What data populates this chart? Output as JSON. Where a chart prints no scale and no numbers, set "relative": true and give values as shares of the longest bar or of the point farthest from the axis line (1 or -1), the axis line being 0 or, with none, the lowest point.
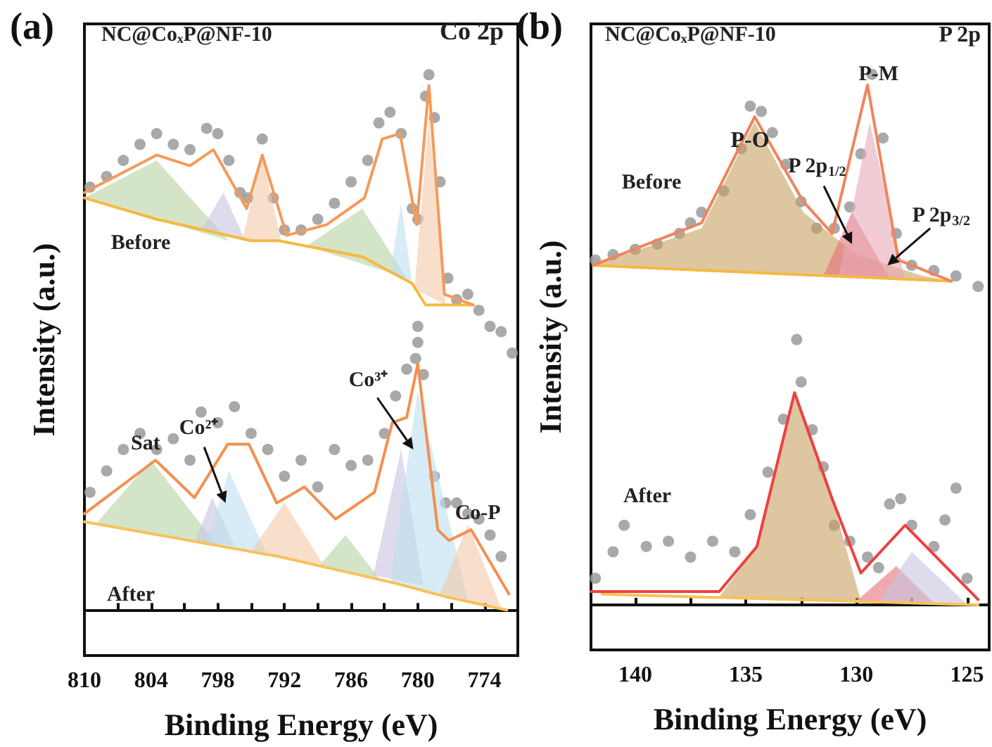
{
  "chart_data": [
    {
      "type": "line",
      "title": "(a)",
      "xlabel": "Binding Energy (eV)",
      "ylabel": "Intensity (a.u.)",
      "relative": true,
      "xlim": [
        810,
        771
      ],
      "xticks": [
        810,
        {
          "value": 807,
          "label": null
        },
        804,
        {
          "value": 801,
          "label": null
        },
        798,
        {
          "value": 795,
          "label": null
        },
        792,
        {
          "value": 789,
          "label": null
        },
        786,
        {
          "value": 783,
          "label": null
        },
        780,
        {
          "value": 777,
          "label": null
        },
        774
      ],
      "series": [
        {
          "type": "scatter",
          "marker": "circle",
          "color": "#9a9a9a",
          "x": [
            809.5,
            808,
            806.5,
            805,
            803.5,
            802,
            800.5,
            799,
            798,
            797,
            796,
            795.3,
            794,
            793,
            792,
            790.5,
            789,
            787.5,
            786,
            784.5,
            783.5,
            782.5,
            781.5,
            780.5,
            780,
            779.3,
            779,
            778.5,
            778,
            777.3,
            776.5,
            775.5,
            774.5,
            773.5,
            772.5,
            771.5
          ],
          "values": [
            0.79,
            0.81,
            0.84,
            0.87,
            0.89,
            0.87,
            0.86,
            0.9,
            0.89,
            0.84,
            0.78,
            0.77,
            0.88,
            0.77,
            0.71,
            0.71,
            0.73,
            0.76,
            0.8,
            0.84,
            0.91,
            0.93,
            0.89,
            0.75,
            0.73,
            0.96,
            1.0,
            0.92,
            0.8,
            0.62,
            0.58,
            0.59,
            0.56,
            0.53,
            0.52,
            0.48
          ]
        },
        {
          "type": "scatter",
          "marker": "circle",
          "color": "#9a9a9a",
          "x": [
            809.5,
            808,
            806.5,
            805,
            803.5,
            802,
            800.5,
            799.5,
            798,
            796.5,
            795,
            793.5,
            792,
            790.5,
            789,
            787.5,
            786,
            784.5,
            783,
            782,
            781,
            780.2,
            780,
            780,
            779.5,
            778.5,
            777.5,
            776.5,
            775.5,
            774.5,
            773.5,
            772.5
          ],
          "values": [
            0.22,
            0.26,
            0.3,
            0.33,
            0.3,
            0.32,
            0.28,
            0.37,
            0.35,
            0.38,
            0.33,
            0.3,
            0.25,
            0.28,
            0.23,
            0.3,
            0.27,
            0.28,
            0.33,
            0.4,
            0.45,
            0.47,
            0.5,
            0.53,
            0.44,
            0.25,
            0.2,
            0.2,
            0.18,
            0.17,
            0.14,
            0.1
          ]
        },
        {
          "type": "area",
          "color": "#b5d3a0",
          "x": [
            810,
            803.5,
            797
          ],
          "values": [
            0.77,
            0.84,
            0.69
          ]
        },
        {
          "type": "area",
          "color": "#c8c4e0",
          "x": [
            799.5,
            797.5,
            795.5
          ],
          "values": [
            0.71,
            0.78,
            0.69
          ]
        },
        {
          "type": "area",
          "color": "#f3c9a8",
          "x": [
            795.8,
            794,
            792.3
          ],
          "values": [
            0.69,
            0.85,
            0.69
          ]
        },
        {
          "type": "area",
          "color": "#b5d3a0",
          "x": [
            790,
            785,
            781
          ],
          "values": [
            0.68,
            0.75,
            0.62
          ]
        },
        {
          "type": "area",
          "color": "#bde0f0",
          "x": [
            782.5,
            781.5,
            780.5
          ],
          "values": [
            0.63,
            0.76,
            0.61
          ]
        },
        {
          "type": "area",
          "color": "#f3c9a8",
          "x": [
            780.3,
            779,
            777.5
          ],
          "values": [
            0.6,
            0.92,
            0.57
          ]
        },
        {
          "type": "area",
          "color": "#b5d3a0",
          "x": [
            809,
            804,
            798
          ],
          "values": [
            0.16,
            0.28,
            0.12
          ]
        },
        {
          "type": "area",
          "color": "#c8c4e0",
          "x": [
            800,
            798.5,
            796.5
          ],
          "values": [
            0.13,
            0.21,
            0.12
          ]
        },
        {
          "type": "area",
          "color": "#bde0f0",
          "x": [
            799,
            797,
            793.5
          ],
          "values": [
            0.125,
            0.26,
            0.1
          ]
        },
        {
          "type": "area",
          "color": "#f3c9a8",
          "x": [
            795,
            792,
            788.5
          ],
          "values": [
            0.11,
            0.2,
            0.085
          ]
        },
        {
          "type": "area",
          "color": "#b5d3a0",
          "x": [
            789,
            786.5,
            783.5
          ],
          "values": [
            0.08,
            0.14,
            0.06
          ]
        },
        {
          "type": "area",
          "color": "#c8c4e0",
          "x": [
            784,
            781.5,
            779.5
          ],
          "values": [
            0.065,
            0.3,
            0.045
          ]
        },
        {
          "type": "area",
          "color": "#bde0f0",
          "x": [
            782.5,
            780,
            775.5
          ],
          "values": [
            0.05,
            0.41,
            0.02
          ]
        },
        {
          "type": "area",
          "color": "#f3c9a8",
          "x": [
            778,
            775.5,
            772.5
          ],
          "values": [
            0.03,
            0.16,
            0.004
          ]
        },
        {
          "color": "#f5b942",
          "x": [
            810,
            803.5,
            795,
            792.5,
            785,
            780.5,
            779.3,
            775
          ],
          "values": [
            0.77,
            0.73,
            0.69,
            0.69,
            0.66,
            0.61,
            0.57,
            0.57
          ]
        },
        {
          "color": "#f7c25a",
          "x": [
            810,
            792.5,
            782,
            777.5,
            772
          ],
          "values": [
            0.165,
            0.1,
            0.05,
            0.025,
            0
          ]
        },
        {
          "color": "#f59a5a",
          "x": [
            810,
            803.5,
            800.5,
            798.4,
            795.4,
            794,
            791.8,
            788.2,
            784.8,
            783.2,
            781.6,
            780.1,
            779,
            777.6,
            775
          ],
          "values": [
            0.78,
            0.85,
            0.83,
            0.86,
            0.75,
            0.85,
            0.7,
            0.72,
            0.77,
            0.88,
            0.89,
            0.72,
            0.98,
            0.59,
            0.57
          ]
        },
        {
          "color": "#f39050",
          "x": [
            810,
            803.6,
            800.1,
            797.1,
            795.2,
            792.7,
            790.2,
            787.4,
            783.9,
            782.3,
            781,
            780,
            778.2,
            777.2,
            775.2,
            771.8
          ],
          "values": [
            0.18,
            0.28,
            0.21,
            0.31,
            0.31,
            0.2,
            0.23,
            0.17,
            0.22,
            0.35,
            0.36,
            0.46,
            0.15,
            0.13,
            0.15,
            0.03
          ]
        }
      ],
      "annotations": [
        "NC@CoₓP@NF-10",
        "Co 2p",
        "Before",
        "After",
        {
          "text": "Sat",
          "x": 804.5,
          "y": 0.31
        },
        {
          "text": "Co²⁺",
          "x": 797.3,
          "y": 0.2
        },
        {
          "text": "Co³⁺",
          "x": 780.4,
          "y": 0.3
        },
        {
          "text": "Co-P",
          "x": 774.6,
          "y": 0.18
        }
      ]
    },
    {
      "type": "line",
      "title": "(b)",
      "xlabel": "Binding Energy (eV)",
      "ylabel": "Intensity (a.u.)",
      "relative": true,
      "xlim": [
        142,
        124
      ],
      "xticks": [
        140,
        {
          "value": 137.5,
          "label": null
        },
        135,
        {
          "value": 132.5,
          "label": null
        },
        130,
        {
          "value": 127.5,
          "label": null
        },
        125
      ],
      "series": [
        {
          "type": "scatter",
          "marker": "circle",
          "color": "#9a9a9a",
          "x": [
            141.8,
            141,
            140,
            139,
            138,
            137.5,
            137,
            136,
            135.2,
            134.8,
            134.3,
            133.8,
            133.2,
            132.5,
            131.8,
            131,
            130.3,
            129.8,
            129.3,
            128.8,
            128.2,
            127.5,
            126.5,
            125.5,
            124.5
          ],
          "values": [
            0.65,
            0.66,
            0.67,
            0.68,
            0.7,
            0.72,
            0.74,
            0.78,
            0.86,
            0.94,
            0.93,
            0.89,
            0.83,
            0.76,
            0.71,
            0.71,
            0.75,
            0.85,
            1.0,
            0.88,
            0.7,
            0.64,
            0.63,
            0.62,
            0.6
          ]
        },
        {
          "type": "scatter",
          "marker": "circle",
          "color": "#9a9a9a",
          "x": [
            141.8,
            141,
            140.5,
            139.5,
            138.5,
            137.5,
            136.5,
            135.5,
            134.8,
            134,
            133.3,
            132.7,
            132.5,
            132,
            131.5,
            131,
            130.3,
            129.5,
            129,
            128.5,
            128,
            127.5,
            126.5,
            126,
            125.5,
            125
          ],
          "values": [
            0.05,
            0.1,
            0.15,
            0.11,
            0.12,
            0.09,
            0.12,
            0.1,
            0.17,
            0.25,
            0.35,
            0.5,
            0.42,
            0.33,
            0.26,
            0.15,
            0.12,
            0.09,
            0.07,
            0.19,
            0.2,
            0.15,
            0.11,
            0.16,
            0.22,
            0.05
          ]
        },
        {
          "type": "area",
          "color": "#c8a060",
          "x": [
            141.9,
            137,
            134.6,
            132.4,
            130,
            127,
            125.7
          ],
          "values": [
            0.64,
            0.71,
            0.91,
            0.74,
            0.66,
            0.62,
            0.61
          ]
        },
        {
          "type": "area",
          "color": "#e8707a",
          "x": [
            131.5,
            130.2,
            128.5
          ],
          "values": [
            0.62,
            0.74,
            0.615
          ]
        },
        {
          "type": "area",
          "color": "#e8aab8",
          "x": [
            130.8,
            129.4,
            127.8
          ],
          "values": [
            0.62,
            0.91,
            0.613
          ]
        },
        {
          "type": "area",
          "color": "#c8a060",
          "x": [
            136.2,
            134.5,
            132.8,
            131.1,
            129.8
          ],
          "values": [
            0.015,
            0.11,
            0.4,
            0.2,
            0.007
          ]
        },
        {
          "type": "area",
          "color": "#e8707a",
          "x": [
            130,
            128.2,
            126.5
          ],
          "values": [
            0.007,
            0.073,
            0.003
          ]
        },
        {
          "type": "area",
          "color": "#c8c4e0",
          "x": [
            129,
            127.5,
            125
          ],
          "values": [
            0.006,
            0.1,
            0.001
          ]
        },
        {
          "color": "#f5b942",
          "x": [
            141.9,
            134,
            125.7
          ],
          "values": [
            0.64,
            0.625,
            0.61
          ]
        },
        {
          "color": "#f7c25a",
          "x": [
            141.5,
            133,
            124.5
          ],
          "values": [
            0.02,
            0.01,
            0
          ]
        },
        {
          "color": "#f0845c",
          "x": [
            141.9,
            137,
            134.6,
            132.4,
            131.1,
            129.5,
            128.1,
            125.7
          ],
          "values": [
            0.64,
            0.72,
            0.92,
            0.76,
            0.7,
            0.98,
            0.65,
            0.61
          ]
        },
        {
          "color": "#ee4040",
          "x": [
            142,
            136.2,
            134.5,
            132.8,
            131.1,
            129.8,
            127.8,
            124.5
          ],
          "values": [
            0.025,
            0.025,
            0.11,
            0.4,
            0.2,
            0.06,
            0.15,
            0.01
          ]
        }
      ],
      "annotations": [
        "NC@CoₓP@NF-10",
        "P 2p",
        "Before",
        "After",
        "P-O",
        {
          "text": "P-M",
          "x": 129,
          "y": 1.0
        },
        {
          "text": "P 2p$_{1/2}$",
          "x": 130.2,
          "y": 0.68
        },
        {
          "text": "P 2p$_{3/2}$",
          "x": 128.6,
          "y": 0.64
        }
      ]
    }
  ]
}
